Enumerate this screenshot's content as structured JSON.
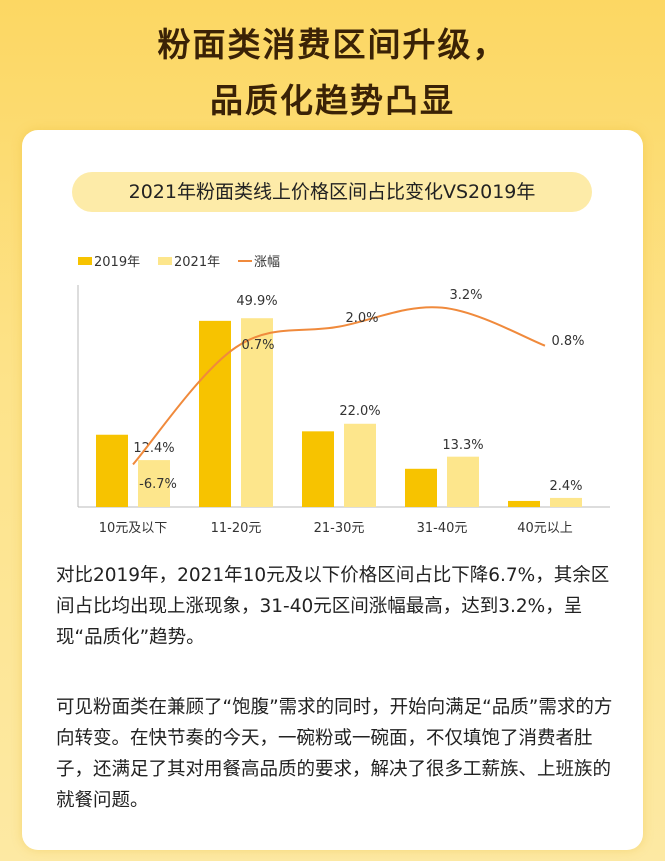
{
  "header": {
    "title_line1": "粉面类消费区间升级，",
    "title_line2": "品质化趋势凸显"
  },
  "colors": {
    "bar_2019": "#f7c300",
    "bar_2021": "#fde68c",
    "line": "#f08a3c",
    "axis": "#bbbbbb"
  },
  "chart_data": {
    "type": "bar",
    "title": "2021年粉面类线上价格区间占比变化VS2019年",
    "legend": [
      "2019年",
      "2021年",
      "涨幅"
    ],
    "legend_position": "top-left",
    "categories": [
      "10元及以下",
      "11-20元",
      "21-30元",
      "31-40元",
      "40元以上"
    ],
    "series": [
      {
        "name": "2019年",
        "values": [
          19.1,
          49.2,
          20.0,
          10.1,
          1.6
        ],
        "value_labels": [
          "",
          "",
          "",
          "",
          ""
        ]
      },
      {
        "name": "2021年",
        "values": [
          12.4,
          49.9,
          22.0,
          13.3,
          2.4
        ],
        "value_labels": [
          "12.4%",
          "49.9%",
          "22.0%",
          "13.3%",
          "2.4%"
        ]
      }
    ],
    "line_series": {
      "name": "涨幅",
      "values": [
        -6.7,
        0.7,
        2.0,
        3.2,
        0.8
      ],
      "value_labels": [
        "-6.7%",
        "0.7%",
        "2.0%",
        "3.2%",
        "0.8%"
      ]
    },
    "ylim": [
      0,
      60
    ],
    "line_ylim": [
      -8,
      4
    ],
    "grid": false
  },
  "text": {
    "p1": "对比2019年，2021年10元及以下价格区间占比下降6.7%，其余区间占比均出现上涨现象，31-40元区间涨幅最高，达到3.2%，呈现“品质化”趋势。",
    "p2": "可见粉面类在兼顾了“饱腹”需求的同时，开始向满足“品质”需求的方向转变。在快节奏的今天，一碗粉或一碗面，不仅填饱了消费者肚子，还满足了其对用餐高品质的要求，解决了很多工薪族、上班族的就餐问题。"
  }
}
